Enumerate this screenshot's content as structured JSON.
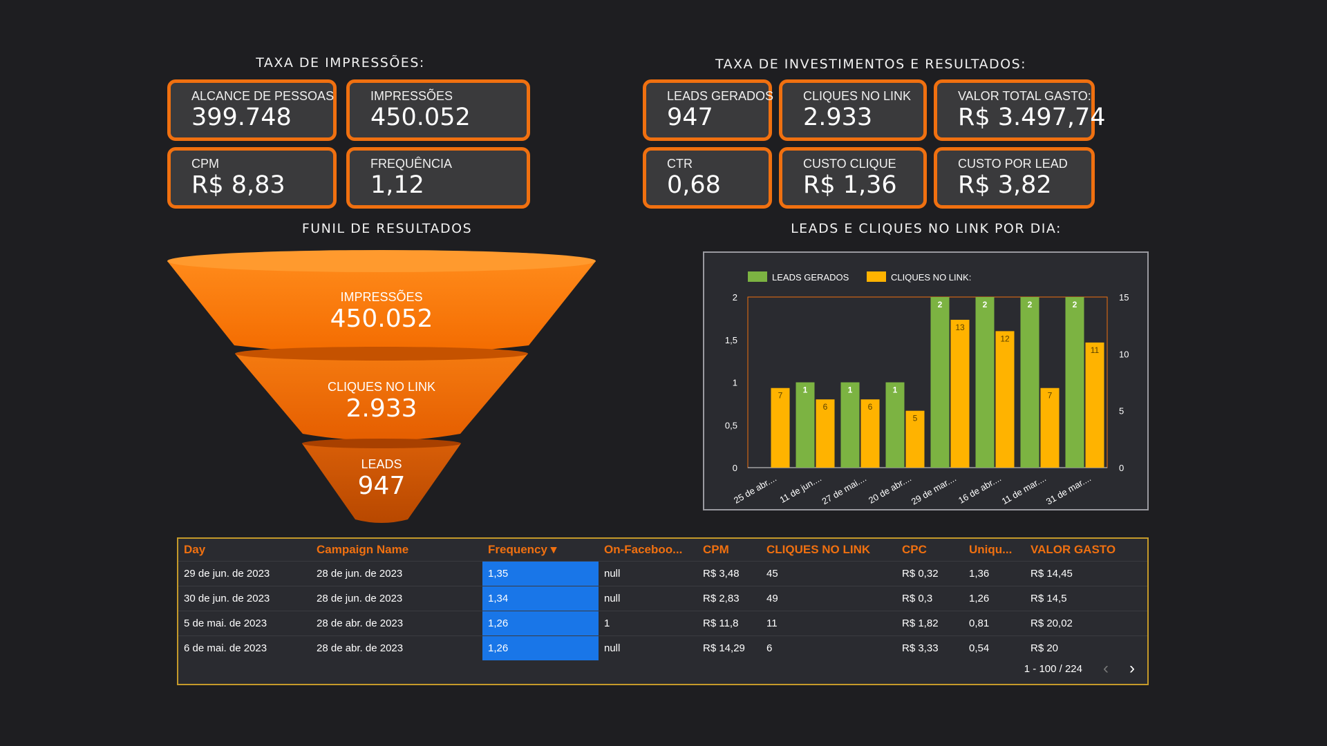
{
  "sections": {
    "impressoes": "TAXA DE IMPRESSÕES:",
    "investimentos": "TAXA DE INVESTIMENTOS E RESULTADOS:",
    "funil": "FUNIL DE RESULTADOS",
    "leads_dia": "LEADS E CLIQUES NO LINK POR DIA:"
  },
  "cards": {
    "alcance": {
      "label": "ALCANCE DE PESSOAS",
      "value": "399.748"
    },
    "impressoes": {
      "label": "IMPRESSÕES",
      "value": "450.052"
    },
    "cpm": {
      "label": "CPM",
      "value": "R$ 8,83"
    },
    "frequencia": {
      "label": "FREQUÊNCIA",
      "value": "1,12"
    },
    "leads": {
      "label": "LEADS GERADOS",
      "value": "947"
    },
    "cliques": {
      "label": "CLIQUES NO LINK",
      "value": "2.933"
    },
    "valor_total": {
      "label": "VALOR TOTAL GASTO:",
      "value": "R$ 3.497,74"
    },
    "ctr": {
      "label": "CTR",
      "value": "0,68"
    },
    "custo_clique": {
      "label": "CUSTO CLIQUE",
      "value": "R$ 1,36"
    },
    "custo_lead": {
      "label": "CUSTO POR LEAD",
      "value": "R$ 3,82"
    }
  },
  "funnel": [
    {
      "label": "IMPRESSÕES",
      "value": "450.052"
    },
    {
      "label": "CLIQUES NO LINK",
      "value": "2.933"
    },
    {
      "label": "LEADS",
      "value": "947"
    }
  ],
  "colors": {
    "accent": "#f07010",
    "leads": "#7cb342",
    "cliques": "#ffb300",
    "freq_highlight": "#1976e8"
  },
  "chart_data": {
    "type": "bar",
    "categories": [
      "25 de abr....",
      "11 de jun....",
      "27 de mai....",
      "20 de abr....",
      "29 de mar....",
      "16 de abr....",
      "11 de mar....",
      "31 de mar...."
    ],
    "series": [
      {
        "name": "LEADS GERADOS",
        "axis": "left",
        "values": [
          0,
          1,
          1,
          1,
          2,
          2,
          2,
          2
        ]
      },
      {
        "name": "CLIQUES NO LINK:",
        "axis": "right",
        "values": [
          7,
          6,
          6,
          5,
          13,
          12,
          7,
          11
        ]
      }
    ],
    "y_left": {
      "min": 0,
      "max": 2,
      "ticks": [
        "0",
        "0,5",
        "1",
        "1,5",
        "2"
      ]
    },
    "y_right": {
      "min": 0,
      "max": 15,
      "ticks": [
        "0",
        "5",
        "10",
        "15"
      ]
    },
    "legend": "top-left"
  },
  "table": {
    "headers": [
      "Day",
      "Campaign Name",
      "Frequency ▾",
      "On-Faceboo...",
      "CPM",
      "CLIQUES NO LINK",
      "CPC",
      "Uniqu...",
      "VALOR GASTO"
    ],
    "rows": [
      [
        "29 de jun. de 2023",
        "28 de jun. de 2023",
        "1,35",
        "null",
        "R$ 3,48",
        "45",
        "R$ 0,32",
        "1,36",
        "R$ 14,45"
      ],
      [
        "30 de jun. de 2023",
        "28 de jun. de 2023",
        "1,34",
        "null",
        "R$ 2,83",
        "49",
        "R$ 0,3",
        "1,26",
        "R$ 14,5"
      ],
      [
        "5 de mai. de 2023",
        "28 de abr. de 2023",
        "1,26",
        "1",
        "R$ 11,8",
        "11",
        "R$ 1,82",
        "0,81",
        "R$ 20,02"
      ],
      [
        "6 de mai. de 2023",
        "28 de abr. de 2023",
        "1,26",
        "null",
        "R$ 14,29",
        "6",
        "R$ 3,33",
        "0,54",
        "R$ 20"
      ]
    ],
    "pagination": "1 - 100 / 224"
  }
}
